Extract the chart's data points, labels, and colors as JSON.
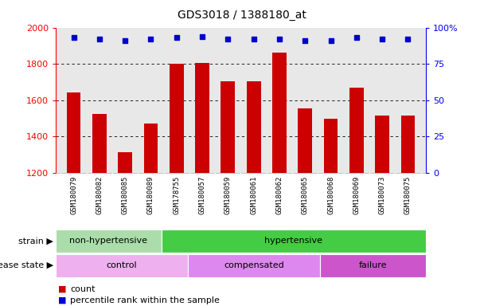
{
  "title": "GDS3018 / 1388180_at",
  "samples": [
    "GSM180079",
    "GSM180082",
    "GSM180085",
    "GSM180089",
    "GSM178755",
    "GSM180057",
    "GSM180059",
    "GSM180061",
    "GSM180062",
    "GSM180065",
    "GSM180068",
    "GSM180069",
    "GSM180073",
    "GSM180075"
  ],
  "counts": [
    1645,
    1525,
    1315,
    1470,
    1800,
    1805,
    1705,
    1705,
    1860,
    1555,
    1500,
    1670,
    1515,
    1515
  ],
  "percentiles": [
    93,
    92,
    91,
    92,
    93,
    94,
    92,
    92,
    92,
    91,
    91,
    93,
    92,
    92
  ],
  "ylim_left": [
    1200,
    2000
  ],
  "ylim_right": [
    0,
    100
  ],
  "yticks_left": [
    1200,
    1400,
    1600,
    1800,
    2000
  ],
  "yticks_right": [
    0,
    25,
    50,
    75,
    100
  ],
  "ytick_right_labels": [
    "0",
    "25",
    "50",
    "75",
    "100%"
  ],
  "bar_color": "#cc0000",
  "dot_color": "#0000cc",
  "strain_groups": [
    {
      "label": "non-hypertensive",
      "start": 0,
      "end": 4,
      "color": "#aaddaa"
    },
    {
      "label": "hypertensive",
      "start": 4,
      "end": 14,
      "color": "#44cc44"
    }
  ],
  "disease_groups": [
    {
      "label": "control",
      "start": 0,
      "end": 5,
      "color": "#eeb0ee"
    },
    {
      "label": "compensated",
      "start": 5,
      "end": 10,
      "color": "#dd88ee"
    },
    {
      "label": "failure",
      "start": 10,
      "end": 14,
      "color": "#cc55cc"
    }
  ],
  "legend_count_label": "count",
  "legend_pct_label": "percentile rank within the sample",
  "strain_label": "strain",
  "disease_label": "disease state",
  "tick_bg": "#d0d0d0",
  "plot_bg": "#e8e8e8",
  "grid_lines": [
    1400,
    1600,
    1800
  ]
}
